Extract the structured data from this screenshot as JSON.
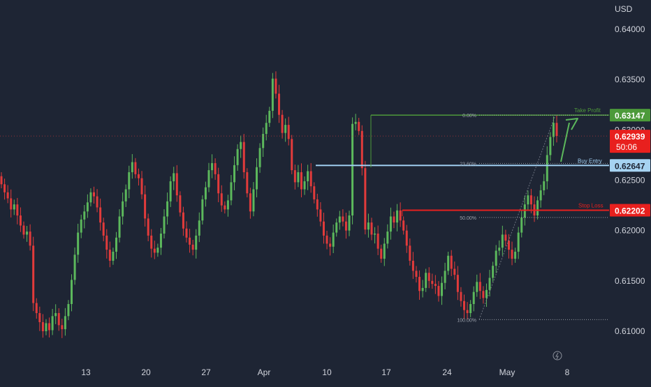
{
  "currency_label": "USD",
  "colors": {
    "background": "#1e2534",
    "up": "#5cb85c",
    "down": "#e23b3b",
    "take_profit": "#4f9a3a",
    "buy_entry": "#9fcdef",
    "stop_loss": "#e8201e",
    "axis_text": "#d1d4dc",
    "fib_text": "#9aa0ab"
  },
  "chart_data": {
    "type": "candlestick",
    "symbol_quote": "USD",
    "ylim": [
      0.6075,
      0.6425
    ],
    "y_ticks": [
      "0.64000",
      "0.63500",
      "0.63000",
      "0.62500",
      "0.62000",
      "0.61500",
      "0.61000"
    ],
    "x_tick_labels": [
      "13",
      "20",
      "27",
      "Apr",
      "10",
      "17",
      "24",
      "May",
      "8"
    ],
    "grid": false,
    "levels": [
      {
        "name": "take_profit",
        "label": "Take Profit",
        "price": 0.63147,
        "badge": "0.63147"
      },
      {
        "name": "buy_entry",
        "label": "Buy Entry",
        "price": 0.62647,
        "badge": "0.62647"
      },
      {
        "name": "stop_loss",
        "label": "Stop Loss",
        "price": 0.62202,
        "badge": "0.62202"
      }
    ],
    "fib_levels": [
      {
        "label": "0.00%",
        "price": 0.63147
      },
      {
        "label": "23.60%",
        "price": 0.62667
      },
      {
        "label": "50.00%",
        "price": 0.6213
      },
      {
        "label": "100.00%",
        "price": 0.61115
      }
    ],
    "current_price": {
      "badge": "0.62939",
      "countdown": "50:06",
      "price": 0.62939
    },
    "closes": [
      0.6246,
      0.6238,
      0.6232,
      0.6221,
      0.6226,
      0.6215,
      0.6205,
      0.6196,
      0.6199,
      0.6185,
      0.6128,
      0.6118,
      0.6109,
      0.61,
      0.6108,
      0.6101,
      0.6115,
      0.6118,
      0.6106,
      0.6102,
      0.6115,
      0.6127,
      0.6151,
      0.6176,
      0.6198,
      0.6211,
      0.6219,
      0.6228,
      0.6238,
      0.6234,
      0.6223,
      0.6208,
      0.6195,
      0.6181,
      0.617,
      0.6179,
      0.6193,
      0.6214,
      0.6229,
      0.6241,
      0.6258,
      0.6268,
      0.6256,
      0.6252,
      0.6236,
      0.6212,
      0.6195,
      0.6182,
      0.6178,
      0.6183,
      0.6197,
      0.6214,
      0.6229,
      0.6249,
      0.6257,
      0.6235,
      0.6218,
      0.6202,
      0.6193,
      0.6186,
      0.6181,
      0.6195,
      0.621,
      0.6231,
      0.6243,
      0.626,
      0.6267,
      0.6256,
      0.6237,
      0.6225,
      0.6221,
      0.623,
      0.6248,
      0.6265,
      0.6281,
      0.6288,
      0.6258,
      0.6237,
      0.6219,
      0.6241,
      0.6263,
      0.6282,
      0.6296,
      0.6307,
      0.6319,
      0.6351,
      0.6336,
      0.6315,
      0.6297,
      0.6305,
      0.6291,
      0.626,
      0.6248,
      0.6258,
      0.6241,
      0.6249,
      0.6259,
      0.6244,
      0.6231,
      0.6221,
      0.6209,
      0.6195,
      0.6187,
      0.6184,
      0.6198,
      0.6208,
      0.6214,
      0.6209,
      0.62,
      0.6215,
      0.6306,
      0.6308,
      0.6299,
      0.6262,
      0.6201,
      0.6208,
      0.6196,
      0.6197,
      0.6182,
      0.6172,
      0.6187,
      0.6199,
      0.6214,
      0.6208,
      0.622,
      0.621,
      0.62,
      0.6185,
      0.617,
      0.616,
      0.6154,
      0.614,
      0.6143,
      0.6158,
      0.615,
      0.6147,
      0.6145,
      0.6135,
      0.6148,
      0.616,
      0.6175,
      0.6162,
      0.6156,
      0.6139,
      0.613,
      0.6121,
      0.6118,
      0.6127,
      0.6139,
      0.6149,
      0.614,
      0.6133,
      0.6141,
      0.6153,
      0.6165,
      0.618,
      0.6183,
      0.6196,
      0.619,
      0.6181,
      0.6172,
      0.6179,
      0.6198,
      0.6213,
      0.6226,
      0.6235,
      0.6226,
      0.6215,
      0.623,
      0.624,
      0.6249,
      0.6275,
      0.6293,
      0.6307,
      0.6294
    ]
  }
}
